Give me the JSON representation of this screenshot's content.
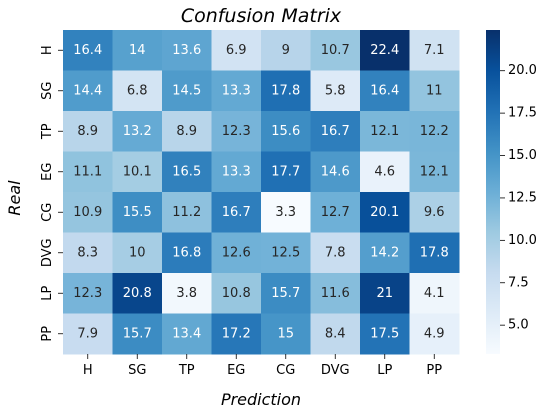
{
  "chart_data": {
    "type": "heatmap",
    "title": "Confusion Matrix",
    "xlabel": "Prediction",
    "ylabel": "Real",
    "x_categories": [
      "H",
      "SG",
      "TP",
      "EG",
      "CG",
      "DVG",
      "LP",
      "PP"
    ],
    "y_categories": [
      "H",
      "SG",
      "TP",
      "EG",
      "CG",
      "DVG",
      "LP",
      "PP"
    ],
    "values": [
      [
        16.4,
        14,
        13.6,
        6.9,
        9,
        10.7,
        22.4,
        7.1
      ],
      [
        14.4,
        6.8,
        14.5,
        13.3,
        17.8,
        5.8,
        16.4,
        11
      ],
      [
        8.9,
        13.2,
        8.9,
        12.3,
        15.6,
        16.7,
        12.1,
        12.2
      ],
      [
        11.1,
        10.1,
        16.5,
        13.3,
        17.7,
        14.6,
        4.6,
        12.1
      ],
      [
        10.9,
        15.5,
        11.2,
        16.7,
        3.3,
        12.7,
        20.1,
        9.6
      ],
      [
        8.3,
        10,
        16.8,
        12.6,
        12.5,
        7.8,
        14.2,
        17.8
      ],
      [
        12.3,
        20.8,
        3.8,
        10.8,
        15.7,
        11.6,
        21,
        4.1
      ],
      [
        7.9,
        15.7,
        13.4,
        17.2,
        15,
        8.4,
        17.5,
        4.9
      ]
    ],
    "colormap": "Blues",
    "vmin": 3.3,
    "vmax": 22.4,
    "colorbar_ticks": [
      "5.0",
      "7.5",
      "10.0",
      "12.5",
      "15.0",
      "17.5",
      "20.0"
    ],
    "colorbar_tick_values": [
      5.0,
      7.5,
      10.0,
      12.5,
      15.0,
      17.5,
      20.0
    ]
  }
}
